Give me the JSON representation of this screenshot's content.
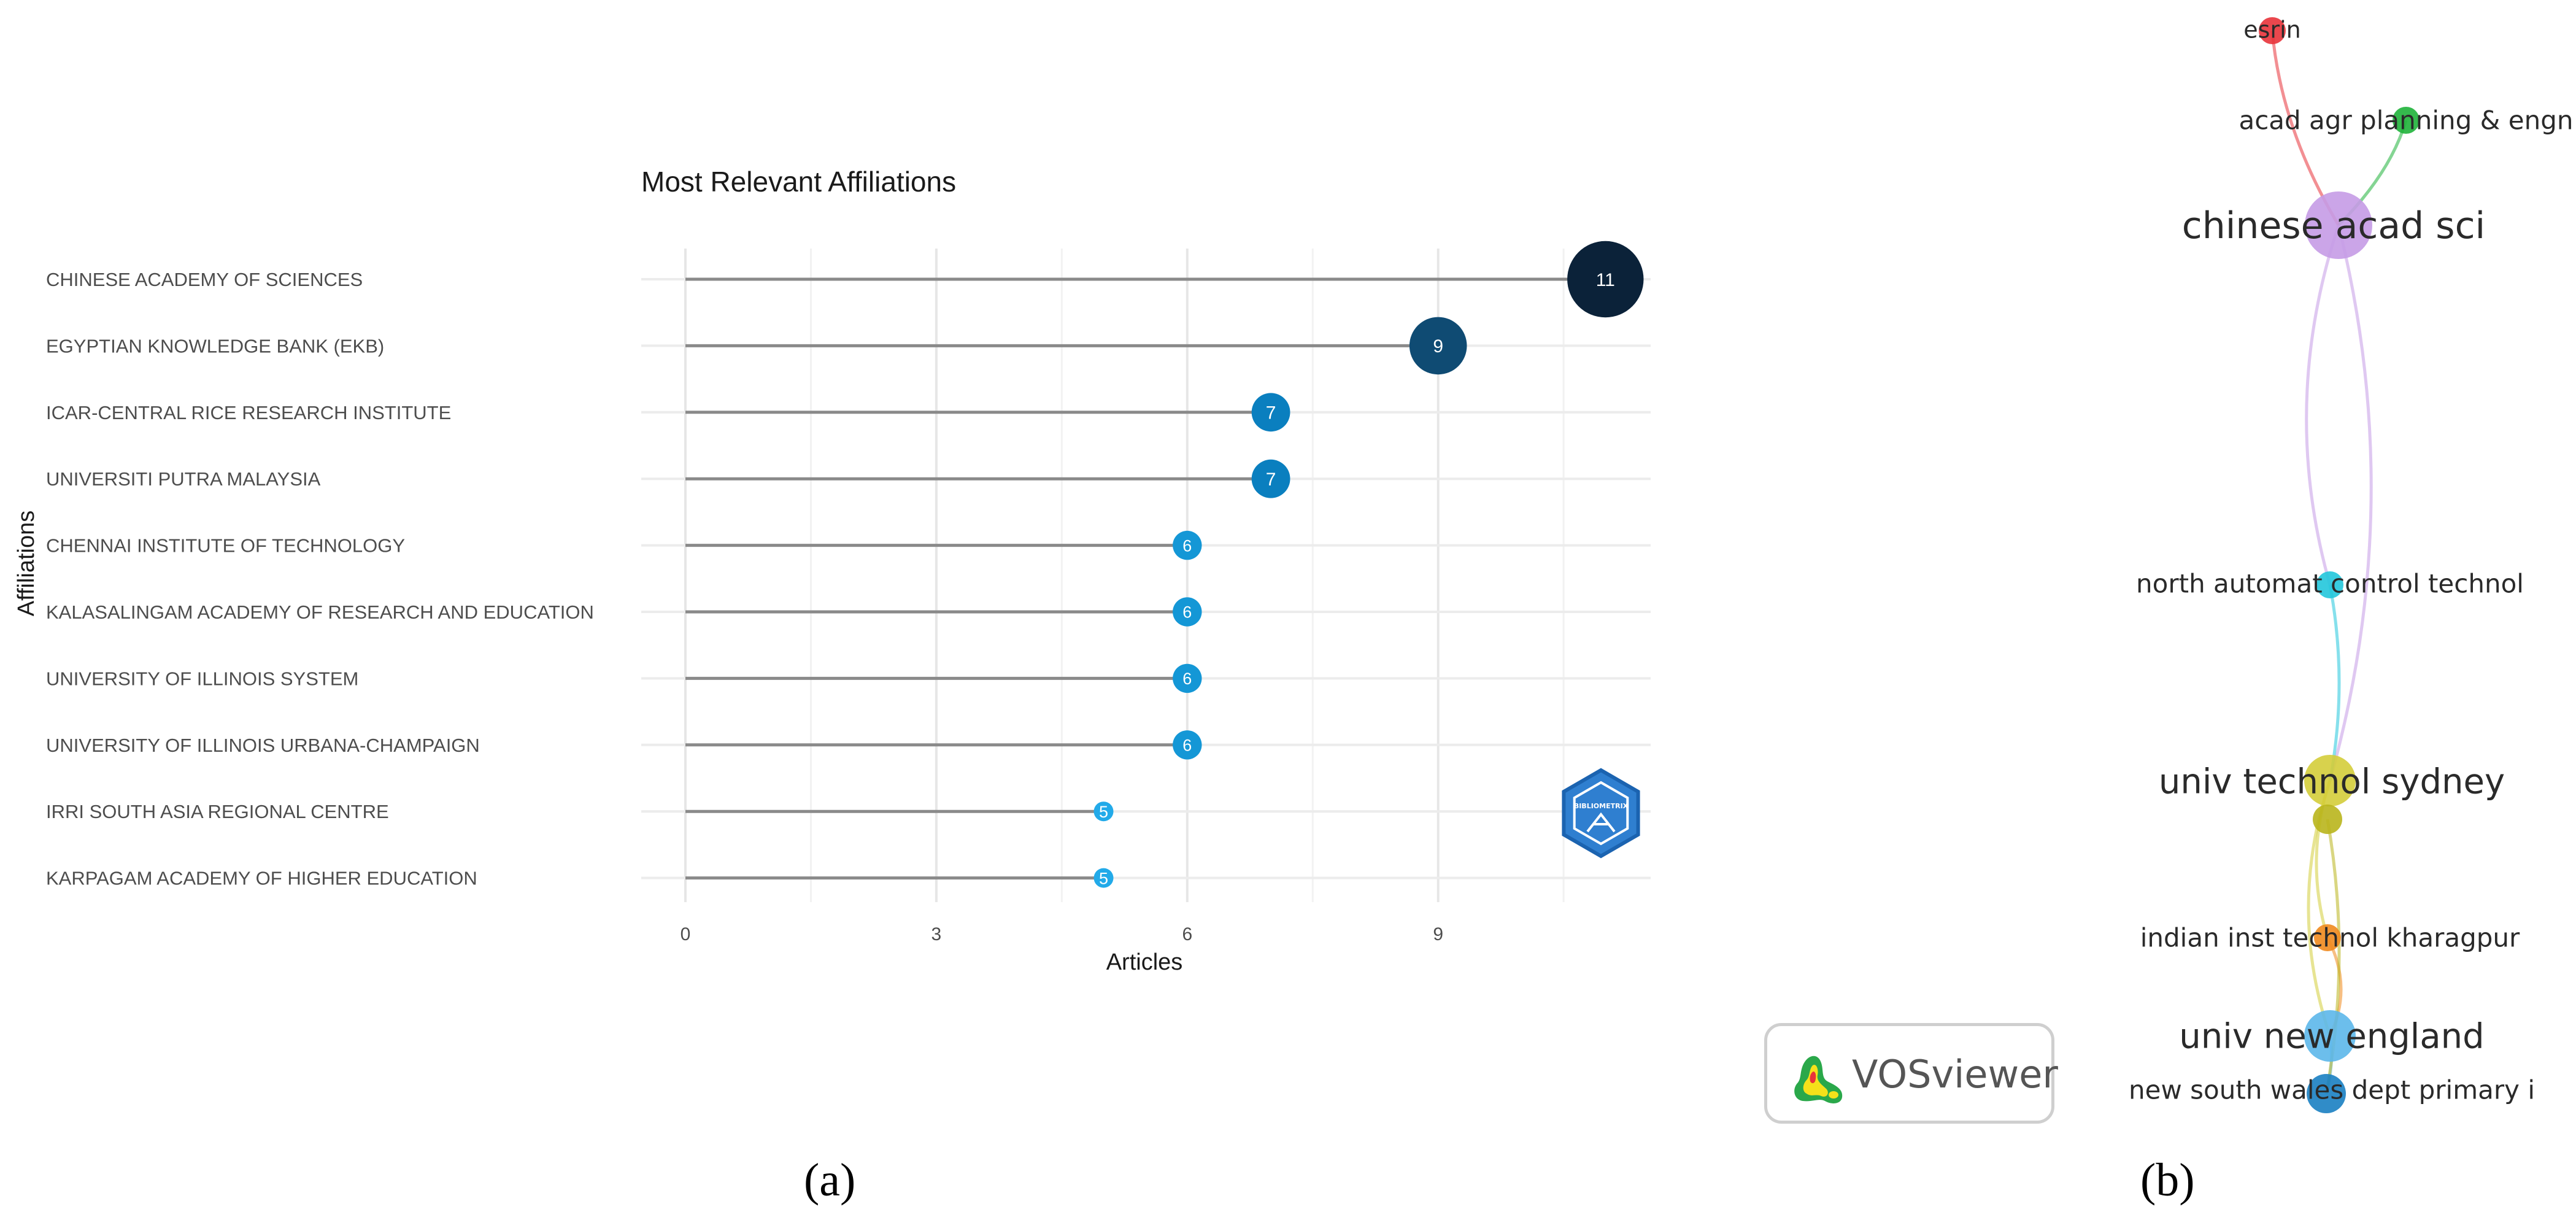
{
  "chart_data": [
    {
      "type": "lollipop",
      "title": "Most Relevant Affiliations",
      "xlabel": "Articles",
      "ylabel": "Affiliations",
      "xlim": [
        0,
        11.5
      ],
      "xticks": [
        0,
        3,
        6,
        9
      ],
      "grid": true,
      "categories": [
        "CHINESE ACADEMY OF SCIENCES",
        "EGYPTIAN KNOWLEDGE BANK (EKB)",
        "ICAR-CENTRAL RICE RESEARCH INSTITUTE",
        "UNIVERSITI PUTRA MALAYSIA",
        "CHENNAI INSTITUTE OF TECHNOLOGY",
        "KALASALINGAM ACADEMY OF RESEARCH AND EDUCATION",
        "UNIVERSITY OF ILLINOIS SYSTEM",
        "UNIVERSITY OF ILLINOIS URBANA-CHAMPAIGN",
        "IRRI SOUTH ASIA REGIONAL CENTRE",
        "KARPAGAM ACADEMY OF HIGHER EDUCATION"
      ],
      "values": [
        11,
        9,
        7,
        7,
        6,
        6,
        6,
        6,
        5,
        5
      ],
      "colors": {
        "11": "#0b2239",
        "9": "#0f4b73",
        "7": "#0a7fbf",
        "6": "#1497d6",
        "5": "#22aae9"
      }
    },
    {
      "type": "network",
      "nodes": [
        {
          "id": "esrin",
          "label": "esrin",
          "color": "#e8333a"
        },
        {
          "id": "acad",
          "label": "acad agr planning & engn",
          "color": "#1fb33a"
        },
        {
          "id": "cas",
          "label": "chinese acad sci",
          "color": "#c59be6"
        },
        {
          "id": "north",
          "label": "north automat control technol",
          "color": "#22c7dc"
        },
        {
          "id": "uts",
          "label": "univ technol sydney",
          "color": "#d4cd3a"
        },
        {
          "id": "uts2",
          "label": "",
          "color": "#b9b51c"
        },
        {
          "id": "iit",
          "label": "indian inst technol kharagpur",
          "color": "#f08a1e"
        },
        {
          "id": "une",
          "label": "univ new england",
          "color": "#5cb7ea"
        },
        {
          "id": "nsw",
          "label": "new south wales dept primary i",
          "color": "#1a7fc2"
        }
      ],
      "links": [
        [
          "esrin",
          "cas"
        ],
        [
          "acad",
          "cas"
        ],
        [
          "cas",
          "north"
        ],
        [
          "cas",
          "uts"
        ],
        [
          "north",
          "uts"
        ],
        [
          "uts",
          "iit"
        ],
        [
          "uts",
          "une"
        ],
        [
          "iit",
          "une"
        ],
        [
          "une",
          "nsw"
        ],
        [
          "uts2",
          "nsw"
        ]
      ]
    }
  ],
  "panels": {
    "a": "(a)",
    "b": "(b)"
  },
  "watermark": {
    "vosviewer": "VOSviewer",
    "bibliometrix": "BIBLIOMETRIX"
  }
}
